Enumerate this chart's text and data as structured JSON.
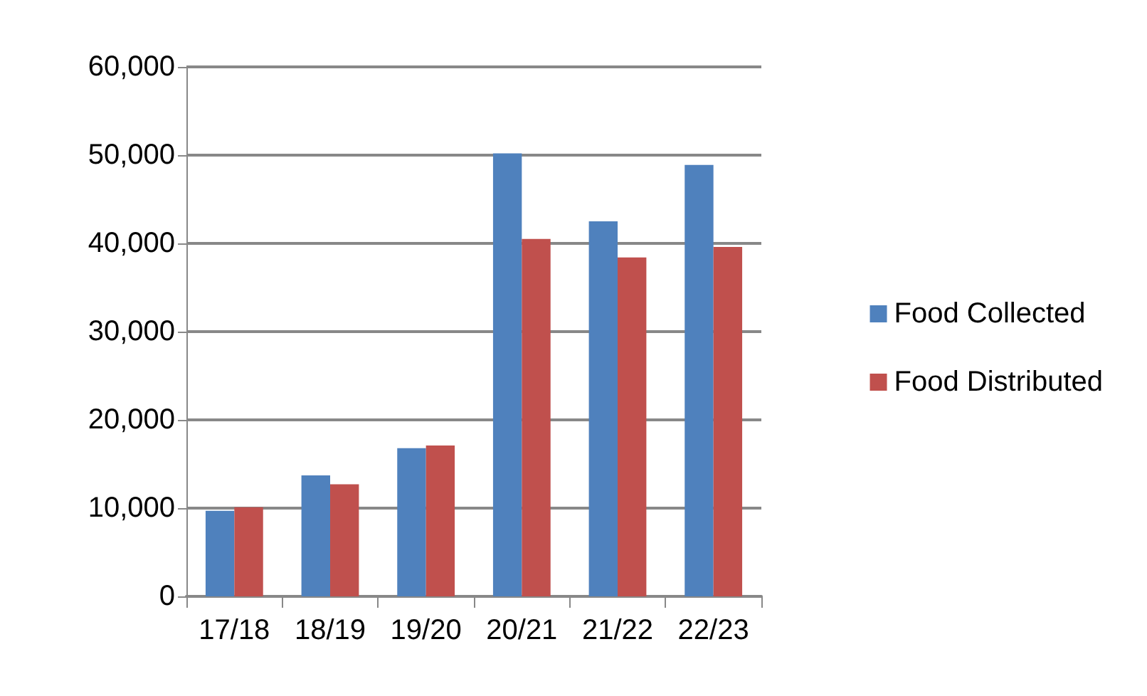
{
  "chart_data": {
    "type": "bar",
    "categories": [
      "17/18",
      "18/19",
      "19/20",
      "20/21",
      "21/22",
      "22/23"
    ],
    "series": [
      {
        "name": "Food Collected",
        "color": "#4f81bd",
        "values": [
          9700,
          13700,
          16800,
          50200,
          42500,
          48900
        ]
      },
      {
        "name": "Food Distributed",
        "color": "#c0504d",
        "values": [
          10100,
          12700,
          17100,
          40500,
          38400,
          39600
        ]
      }
    ],
    "ylim": [
      0,
      60000
    ],
    "yticks": [
      0,
      {
        "value": 10000,
        "label": "10,000"
      },
      {
        "value": 20000,
        "label": "20,000"
      },
      {
        "value": 30000,
        "label": "30,000"
      },
      {
        "value": 40000,
        "label": "40,000"
      },
      {
        "value": 50000,
        "label": "50,000"
      },
      {
        "value": 60000,
        "label": "60,000"
      }
    ],
    "grid": "y",
    "legend": "right"
  }
}
